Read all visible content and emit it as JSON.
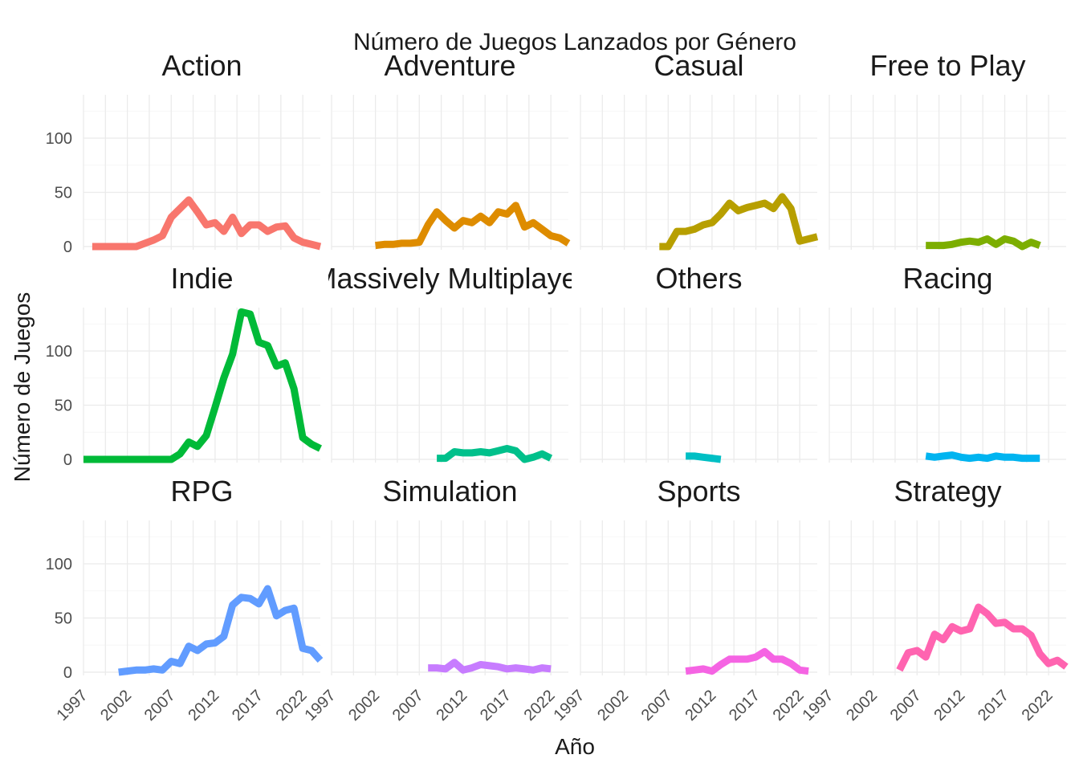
{
  "chart_data": {
    "type": "line",
    "title": "Número de Juegos Lanzados por Género",
    "xlabel": "Año",
    "ylabel": "Número de Juegos",
    "xlim": [
      1997,
      2024
    ],
    "ylim": [
      -3,
      140
    ],
    "x_ticks": [
      "1997",
      "2002",
      "2007",
      "2012",
      "2017",
      "2022"
    ],
    "y_ticks": [
      "0",
      "50",
      "100"
    ],
    "grid": true,
    "legend": "none",
    "panels": [
      {
        "name": "Action",
        "color": "#F8766D",
        "x": [
          1998,
          1999,
          2000,
          2001,
          2002,
          2003,
          2004,
          2005,
          2006,
          2007,
          2008,
          2009,
          2010,
          2011,
          2012,
          2013,
          2014,
          2015,
          2016,
          2017,
          2018,
          2019,
          2020,
          2021,
          2022,
          2023,
          2024
        ],
        "y": [
          0,
          0,
          0,
          0,
          0,
          0,
          3,
          6,
          10,
          27,
          35,
          43,
          32,
          20,
          22,
          14,
          27,
          12,
          20,
          20,
          14,
          18,
          19,
          8,
          4,
          2,
          0
        ]
      },
      {
        "name": "Adventure",
        "color": "#DE8C00",
        "x": [
          2002,
          2003,
          2004,
          2005,
          2006,
          2007,
          2008,
          2009,
          2010,
          2011,
          2012,
          2013,
          2014,
          2015,
          2016,
          2017,
          2018,
          2019,
          2020,
          2021,
          2022,
          2023,
          2024
        ],
        "y": [
          1,
          2,
          2,
          3,
          3,
          4,
          20,
          32,
          24,
          17,
          24,
          22,
          28,
          22,
          32,
          30,
          38,
          18,
          22,
          16,
          10,
          8,
          3
        ]
      },
      {
        "name": "Casual",
        "color": "#B79F00",
        "x": [
          2006,
          2007,
          2008,
          2009,
          2010,
          2011,
          2012,
          2013,
          2014,
          2015,
          2016,
          2017,
          2018,
          2019,
          2020,
          2021,
          2022,
          2023,
          2024
        ],
        "y": [
          0,
          0,
          14,
          14,
          16,
          20,
          22,
          30,
          40,
          33,
          36,
          38,
          40,
          35,
          46,
          35,
          5,
          7,
          9
        ]
      },
      {
        "name": "Free to Play",
        "color": "#7CAE00",
        "x": [
          2008,
          2009,
          2010,
          2011,
          2012,
          2013,
          2014,
          2015,
          2016,
          2017,
          2018,
          2019,
          2020,
          2021
        ],
        "y": [
          1,
          1,
          1,
          2,
          4,
          5,
          4,
          7,
          2,
          7,
          5,
          0,
          4,
          1
        ]
      },
      {
        "name": "Indie",
        "color": "#00BA38",
        "x": [
          1997,
          1998,
          1999,
          2000,
          2001,
          2002,
          2003,
          2004,
          2005,
          2006,
          2007,
          2008,
          2009,
          2010,
          2011,
          2012,
          2013,
          2014,
          2015,
          2016,
          2017,
          2018,
          2019,
          2020,
          2021,
          2022,
          2023,
          2024
        ],
        "y": [
          0,
          0,
          0,
          0,
          0,
          0,
          0,
          0,
          0,
          0,
          0,
          5,
          16,
          12,
          22,
          48,
          75,
          97,
          136,
          134,
          108,
          105,
          86,
          89,
          65,
          20,
          14,
          10
        ]
      },
      {
        "name": "Massively Multiplayer",
        "color": "#00C08B",
        "x": [
          2009,
          2010,
          2011,
          2012,
          2013,
          2014,
          2015,
          2016,
          2017,
          2018,
          2019,
          2020,
          2021,
          2022
        ],
        "y": [
          1,
          1,
          7,
          6,
          6,
          7,
          6,
          8,
          10,
          8,
          0,
          2,
          5,
          1
        ]
      },
      {
        "name": "Others",
        "color": "#00BFC4",
        "x": [
          2009,
          2010,
          2011,
          2012,
          2013
        ],
        "y": [
          3,
          3,
          2,
          1,
          0
        ]
      },
      {
        "name": "Racing",
        "color": "#00B4F0",
        "x": [
          2008,
          2009,
          2010,
          2011,
          2012,
          2013,
          2014,
          2015,
          2016,
          2017,
          2018,
          2019,
          2020,
          2021
        ],
        "y": [
          3,
          2,
          3,
          4,
          2,
          1,
          2,
          1,
          3,
          2,
          2,
          1,
          1,
          1
        ]
      },
      {
        "name": "RPG",
        "color": "#619CFF",
        "x": [
          2001,
          2002,
          2003,
          2004,
          2005,
          2006,
          2007,
          2008,
          2009,
          2010,
          2011,
          2012,
          2013,
          2014,
          2015,
          2016,
          2017,
          2018,
          2019,
          2020,
          2021,
          2022,
          2023,
          2024
        ],
        "y": [
          0,
          1,
          2,
          2,
          3,
          2,
          10,
          8,
          24,
          20,
          26,
          27,
          33,
          62,
          69,
          68,
          63,
          77,
          52,
          57,
          59,
          22,
          20,
          11
        ]
      },
      {
        "name": "Simulation",
        "color": "#C77CFF",
        "x": [
          2008,
          2009,
          2010,
          2011,
          2012,
          2013,
          2014,
          2015,
          2016,
          2017,
          2018,
          2019,
          2020,
          2021,
          2022
        ],
        "y": [
          4,
          4,
          3,
          9,
          2,
          4,
          7,
          6,
          5,
          3,
          4,
          3,
          2,
          4,
          3
        ]
      },
      {
        "name": "Sports",
        "color": "#F564E3",
        "x": [
          2009,
          2010,
          2011,
          2012,
          2013,
          2014,
          2015,
          2016,
          2017,
          2018,
          2019,
          2020,
          2021,
          2022,
          2023
        ],
        "y": [
          1,
          2,
          3,
          1,
          7,
          12,
          12,
          12,
          14,
          19,
          12,
          12,
          8,
          2,
          1
        ]
      },
      {
        "name": "Strategy",
        "color": "#FF64B0",
        "x": [
          2005,
          2006,
          2007,
          2008,
          2009,
          2010,
          2011,
          2012,
          2013,
          2014,
          2015,
          2016,
          2017,
          2018,
          2019,
          2020,
          2021,
          2022,
          2023,
          2024
        ],
        "y": [
          2,
          18,
          20,
          14,
          35,
          30,
          42,
          38,
          40,
          60,
          54,
          45,
          46,
          40,
          40,
          34,
          17,
          8,
          11,
          5
        ]
      }
    ]
  }
}
